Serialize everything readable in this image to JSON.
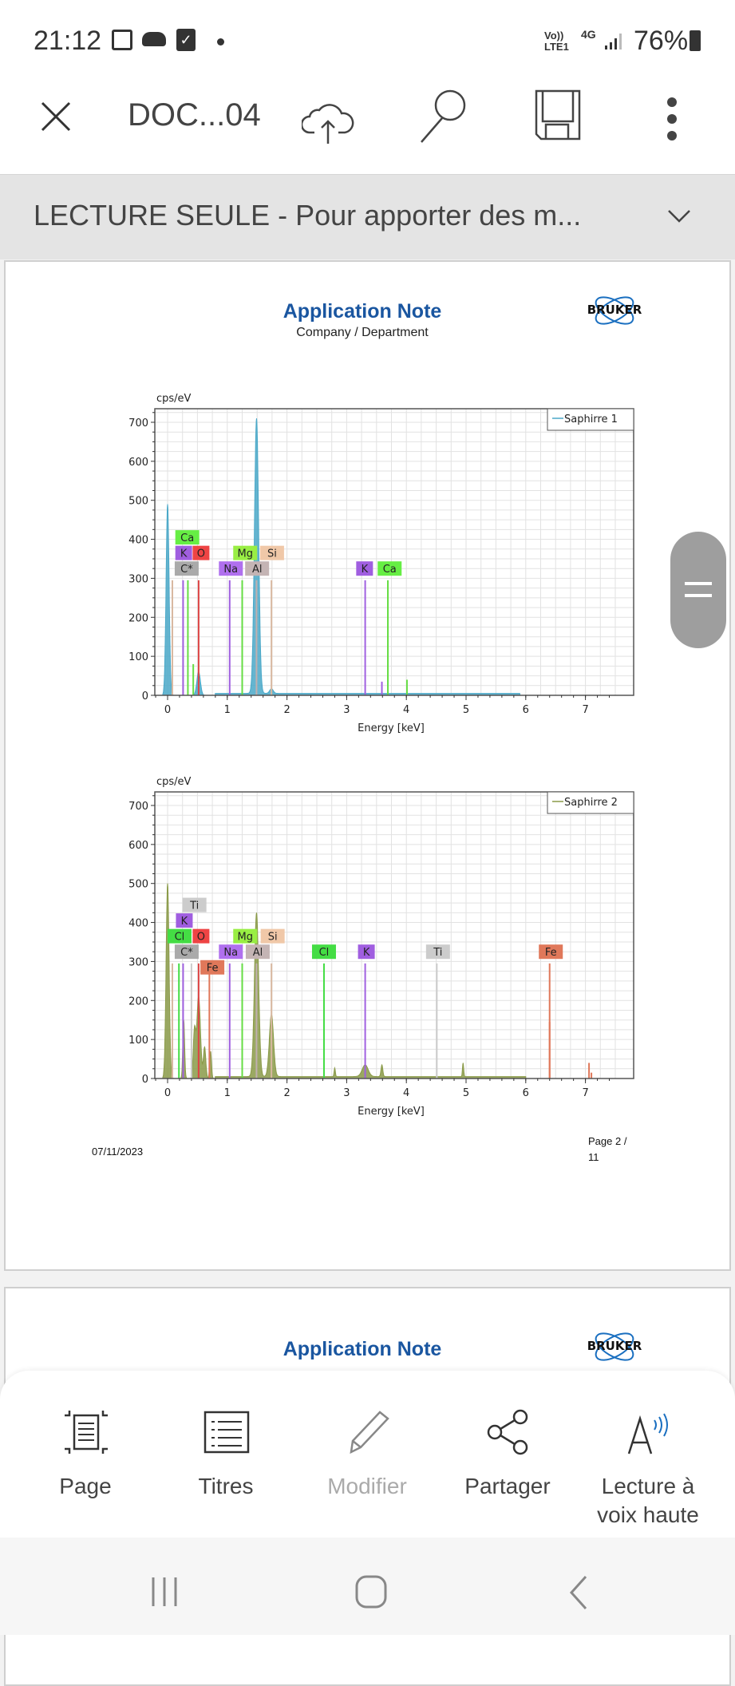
{
  "status": {
    "time": "21:12",
    "network_top": "Vo))",
    "network_bottom": "LTE1",
    "gen": "4G",
    "battery": "76%"
  },
  "toolbar": {
    "title": "DOC...04"
  },
  "banner": {
    "text": "LECTURE SEULE - Pour apporter des m..."
  },
  "doc": {
    "header_title": "Application Note",
    "header_sub": "Company / Department",
    "logo": "BRUKER",
    "footer_date": "07/11/2023",
    "footer_page_a": "Page 2 /",
    "footer_page_b": "11",
    "page2_title": "Application Note",
    "page2_logo": "BRUKER"
  },
  "colors": {
    "s1": "#4aa8c8",
    "s2": "#8a9a48",
    "accent": "#1a56a0"
  },
  "chart_data": [
    {
      "type": "area",
      "ylabel": "cps/eV",
      "xlabel": "Energy [keV]",
      "legend": "Saphirre 1",
      "legend_position": "top-right",
      "xlim": [
        -0.2,
        7.7
      ],
      "ylim": [
        0,
        735
      ],
      "xticks": [
        0,
        1,
        2,
        3,
        4,
        5,
        6,
        7
      ],
      "yticks": [
        0,
        100,
        200,
        300,
        400,
        500,
        600,
        700
      ],
      "grid": true,
      "peaks": [
        [
          0.0,
          490,
          0.025
        ],
        [
          0.52,
          60,
          0.03
        ],
        [
          1.49,
          705,
          0.035
        ],
        [
          1.74,
          12,
          0.03
        ]
      ],
      "baseline": [
        0.8,
        5.9,
        5
      ],
      "lines": [
        [
          0.08,
          295,
          "#d8b8a0"
        ],
        [
          0.26,
          295,
          "#a060e0"
        ],
        [
          0.34,
          295,
          "#66dd44"
        ],
        [
          0.43,
          80,
          "#66dd44"
        ],
        [
          0.52,
          295,
          "#dd4444"
        ],
        [
          1.04,
          295,
          "#a060e0"
        ],
        [
          1.25,
          295,
          "#66dd44"
        ],
        [
          1.49,
          295,
          "#c0b0b0"
        ],
        [
          1.74,
          295,
          "#d8b8a0"
        ],
        [
          3.31,
          295,
          "#a060e0"
        ],
        [
          3.59,
          35,
          "#a060e0"
        ],
        [
          3.69,
          295,
          "#66dd44"
        ],
        [
          4.01,
          40,
          "#66dd44"
        ]
      ],
      "labels": [
        {
          "t": "Ca",
          "x": 0.33,
          "y": 405,
          "c": "#66ee44"
        },
        {
          "t": "K",
          "x": 0.27,
          "y": 365,
          "c": "#a05ee0"
        },
        {
          "t": "O",
          "x": 0.56,
          "y": 365,
          "c": "#ee4444"
        },
        {
          "t": "C*",
          "x": 0.32,
          "y": 325,
          "c": "#aaaaaa"
        },
        {
          "t": "Na",
          "x": 1.06,
          "y": 325,
          "c": "#b070ee"
        },
        {
          "t": "Mg",
          "x": 1.3,
          "y": 365,
          "c": "#99ee44"
        },
        {
          "t": "Si",
          "x": 1.75,
          "y": 365,
          "c": "#f0c8a8"
        },
        {
          "t": "Al",
          "x": 1.5,
          "y": 325,
          "c": "#c4b4b4"
        },
        {
          "t": "K",
          "x": 3.3,
          "y": 325,
          "c": "#a05ee0"
        },
        {
          "t": "Ca",
          "x": 3.72,
          "y": 325,
          "c": "#66ee44"
        }
      ]
    },
    {
      "type": "area",
      "ylabel": "cps/eV",
      "xlabel": "Energy [keV]",
      "legend": "Saphirre 2",
      "legend_position": "top-right",
      "xlim": [
        -0.2,
        7.7
      ],
      "ylim": [
        0,
        735
      ],
      "xticks": [
        0,
        1,
        2,
        3,
        4,
        5,
        6,
        7
      ],
      "yticks": [
        0,
        100,
        200,
        300,
        400,
        500,
        600,
        700
      ],
      "grid": true,
      "peaks": [
        [
          0.0,
          500,
          0.025
        ],
        [
          0.27,
          150,
          0.015
        ],
        [
          0.45,
          120,
          0.02
        ],
        [
          0.52,
          210,
          0.03
        ],
        [
          0.62,
          80,
          0.02
        ],
        [
          0.72,
          70,
          0.015
        ],
        [
          1.49,
          420,
          0.035
        ],
        [
          1.74,
          160,
          0.035
        ],
        [
          3.31,
          30,
          0.05
        ],
        [
          2.8,
          22,
          0.01
        ],
        [
          3.59,
          30,
          0.015
        ],
        [
          4.95,
          35,
          0.01
        ],
        [
          6.4,
          145,
          0.01
        ],
        [
          7.06,
          40,
          0.01
        ],
        [
          7.1,
          15,
          0.01
        ]
      ],
      "baseline": [
        0.8,
        6.0,
        5
      ],
      "lines": [
        [
          0.08,
          295,
          "#d8b8a0"
        ],
        [
          0.19,
          295,
          "#44dd44"
        ],
        [
          0.26,
          295,
          "#a060e0"
        ],
        [
          0.4,
          295,
          "#cccccc"
        ],
        [
          0.52,
          295,
          "#dd4444"
        ],
        [
          0.7,
          295,
          "#e0785a"
        ],
        [
          1.04,
          295,
          "#a060e0"
        ],
        [
          1.25,
          295,
          "#66dd44"
        ],
        [
          1.49,
          295,
          "#c0b0b0"
        ],
        [
          1.74,
          295,
          "#d8b8a0"
        ],
        [
          2.62,
          295,
          "#44dd44"
        ],
        [
          3.31,
          295,
          "#a060e0"
        ],
        [
          4.51,
          295,
          "#cccccc"
        ],
        [
          6.4,
          295,
          "#e0785a"
        ]
      ],
      "labels": [
        {
          "t": "Ti",
          "x": 0.45,
          "y": 445,
          "c": "#cccccc"
        },
        {
          "t": "K",
          "x": 0.28,
          "y": 405,
          "c": "#a05ee0"
        },
        {
          "t": "Cl",
          "x": 0.2,
          "y": 365,
          "c": "#44dd44"
        },
        {
          "t": "O",
          "x": 0.56,
          "y": 365,
          "c": "#ee4444"
        },
        {
          "t": "C*",
          "x": 0.32,
          "y": 325,
          "c": "#aaaaaa"
        },
        {
          "t": "Fe",
          "x": 0.75,
          "y": 285,
          "c": "#e0785a"
        },
        {
          "t": "Na",
          "x": 1.06,
          "y": 325,
          "c": "#b070ee"
        },
        {
          "t": "Mg",
          "x": 1.3,
          "y": 365,
          "c": "#99ee44"
        },
        {
          "t": "Si",
          "x": 1.76,
          "y": 365,
          "c": "#f0c8a8"
        },
        {
          "t": "Al",
          "x": 1.51,
          "y": 325,
          "c": "#c4b4b4"
        },
        {
          "t": "Cl",
          "x": 2.62,
          "y": 325,
          "c": "#44dd44"
        },
        {
          "t": "K",
          "x": 3.33,
          "y": 325,
          "c": "#a05ee0"
        },
        {
          "t": "Ti",
          "x": 4.53,
          "y": 325,
          "c": "#cccccc"
        },
        {
          "t": "Fe",
          "x": 6.42,
          "y": 325,
          "c": "#e0785a"
        }
      ]
    }
  ],
  "bottom_menu": [
    {
      "label": "Page"
    },
    {
      "label": "Titres"
    },
    {
      "label": "Modifier",
      "disabled": true
    },
    {
      "label": "Partager"
    },
    {
      "label": "Lecture à",
      "label2": "voix haute"
    }
  ]
}
